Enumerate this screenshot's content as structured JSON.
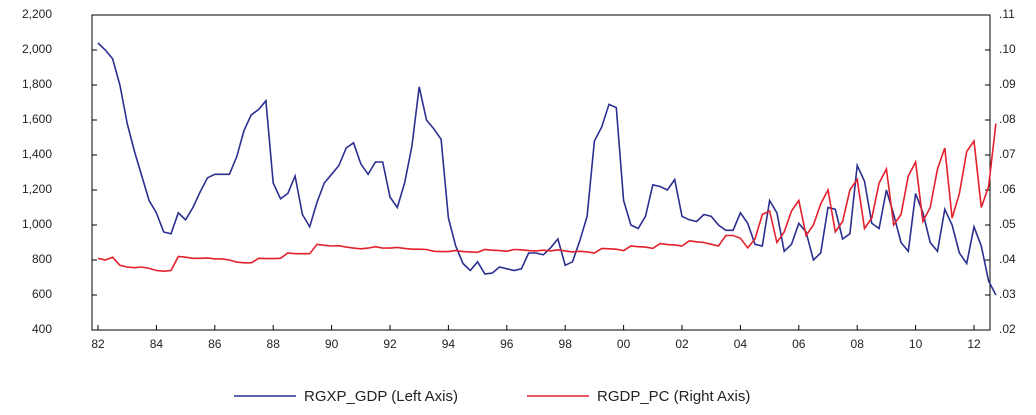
{
  "chart_data": {
    "type": "line",
    "categories": [
      "82",
      null,
      null,
      null,
      null,
      null,
      null,
      null,
      "84",
      null,
      null,
      null,
      null,
      null,
      null,
      null,
      "86",
      null,
      null,
      null,
      null,
      null,
      null,
      null,
      "88",
      null,
      null,
      null,
      null,
      null,
      null,
      null,
      "90",
      null,
      null,
      null,
      null,
      null,
      null,
      null,
      "92",
      null,
      null,
      null,
      null,
      null,
      null,
      null,
      "94",
      null,
      null,
      null,
      null,
      null,
      null,
      null,
      "96",
      null,
      null,
      null,
      null,
      null,
      null,
      null,
      "98",
      null,
      null,
      null,
      null,
      null,
      null,
      null,
      "00",
      null,
      null,
      null,
      null,
      null,
      null,
      null,
      "02",
      null,
      null,
      null,
      null,
      null,
      null,
      null,
      "04",
      null,
      null,
      null,
      null,
      null,
      null,
      null,
      "06",
      null,
      null,
      null,
      null,
      null,
      null,
      null,
      "08",
      null,
      null,
      null,
      null,
      null,
      null,
      null,
      "10",
      null,
      null,
      null,
      null,
      null,
      null,
      null,
      "12",
      null,
      null,
      null
    ],
    "series": [
      {
        "name": "RGXP_GDP (Left Axis)",
        "color": "#2b2f8f",
        "values": [
          2040,
          2000,
          1950,
          1800,
          1580,
          1420,
          1280,
          1140,
          1070,
          960,
          950,
          1070,
          1030,
          1100,
          1190,
          1270,
          1290,
          1290,
          1290,
          1390,
          1540,
          1630,
          1660,
          1710,
          1240,
          1150,
          1180,
          1280,
          1060,
          990,
          1130,
          1240,
          1290,
          1340,
          1440,
          1470,
          1350,
          1290,
          1360,
          1360,
          1160,
          1100,
          1240,
          1450,
          1790,
          1600,
          1550,
          1490,
          1040,
          880,
          780,
          740,
          790,
          720,
          725,
          760,
          750,
          740,
          750,
          840,
          840,
          830,
          870,
          920,
          770,
          790,
          910,
          1050,
          1480,
          1560,
          1690,
          1670,
          1140,
          1000,
          980,
          1050,
          1230,
          1220,
          1200,
          1260,
          1050,
          1030,
          1020,
          1060,
          1050,
          1000,
          970,
          970,
          1070,
          1010,
          890,
          880,
          1140,
          1070,
          850,
          890,
          1010,
          960,
          800,
          840,
          1100,
          1090,
          920,
          950,
          1340,
          1250,
          1010,
          980,
          1200,
          1060,
          900,
          850,
          1180,
          1070,
          900,
          850,
          1090,
          1000,
          840,
          780,
          990,
          880,
          680,
          600
        ]
      },
      {
        "name": "RGDP_PC (Right Axis)",
        "color": "#e3202b",
        "axis": "y2",
        "values": [
          0.0405,
          0.04,
          0.0408,
          0.0385,
          0.038,
          0.0378,
          0.038,
          0.0376,
          0.037,
          0.0368,
          0.037,
          0.041,
          0.0408,
          0.0405,
          0.0405,
          0.0406,
          0.0403,
          0.0403,
          0.04,
          0.0394,
          0.0392,
          0.0392,
          0.0405,
          0.0404,
          0.0404,
          0.0405,
          0.042,
          0.0418,
          0.0418,
          0.0418,
          0.0445,
          0.0442,
          0.044,
          0.0441,
          0.0437,
          0.0434,
          0.0432,
          0.0434,
          0.0438,
          0.0434,
          0.0434,
          0.0436,
          0.0433,
          0.0431,
          0.0431,
          0.043,
          0.0425,
          0.0424,
          0.0424,
          0.0427,
          0.0424,
          0.0423,
          0.0422,
          0.043,
          0.0428,
          0.0427,
          0.0425,
          0.043,
          0.0429,
          0.0427,
          0.0426,
          0.0428,
          0.0426,
          0.0429,
          0.0426,
          0.0423,
          0.0425,
          0.0423,
          0.042,
          0.0433,
          0.0432,
          0.0431,
          0.0427,
          0.044,
          0.0438,
          0.0437,
          0.0433,
          0.0447,
          0.0444,
          0.0443,
          0.044,
          0.0455,
          0.0452,
          0.045,
          0.0445,
          0.044,
          0.047,
          0.047,
          0.0462,
          0.0435,
          0.046,
          0.053,
          0.054,
          0.045,
          0.048,
          0.054,
          0.057,
          0.047,
          0.05,
          0.056,
          0.06,
          0.048,
          0.051,
          0.06,
          0.063,
          0.049,
          0.052,
          0.062,
          0.066,
          0.05,
          0.053,
          0.064,
          0.068,
          0.051,
          0.055,
          0.066,
          0.072,
          0.052,
          0.059,
          0.071,
          0.074,
          0.055,
          0.061,
          0.079
        ]
      }
    ],
    "ylim": [
      400,
      2200
    ],
    "yticks": [
      400,
      800,
      {
        "value": 1000,
        "label": "1,000"
      },
      {
        "value": 1200,
        "label": "1,200"
      },
      {
        "value": 1400,
        "label": "1,400"
      },
      {
        "value": 1600,
        "label": "1,600"
      },
      {
        "value": 1800,
        "label": "1,800"
      },
      {
        "value": 2000,
        "label": "2,000"
      },
      {
        "value": 2200,
        "label": "2,200"
      },
      600
    ],
    "y2lim": [
      0.02,
      0.11
    ],
    "y2ticks": [
      {
        "value": 0.02,
        "label": ".02"
      },
      {
        "value": 0.03,
        "label": ".03"
      },
      {
        "value": 0.04,
        "label": ".04"
      },
      {
        "value": 0.05,
        "label": ".05"
      },
      {
        "value": 0.06,
        "label": ".06"
      },
      {
        "value": 0.07,
        "label": ".07"
      },
      {
        "value": 0.08,
        "label": ".08"
      },
      {
        "value": 0.09,
        "label": ".09"
      },
      {
        "value": 0.1,
        "label": ".10"
      },
      {
        "value": 0.11,
        "label": ".11"
      }
    ],
    "legend": "bottom"
  }
}
